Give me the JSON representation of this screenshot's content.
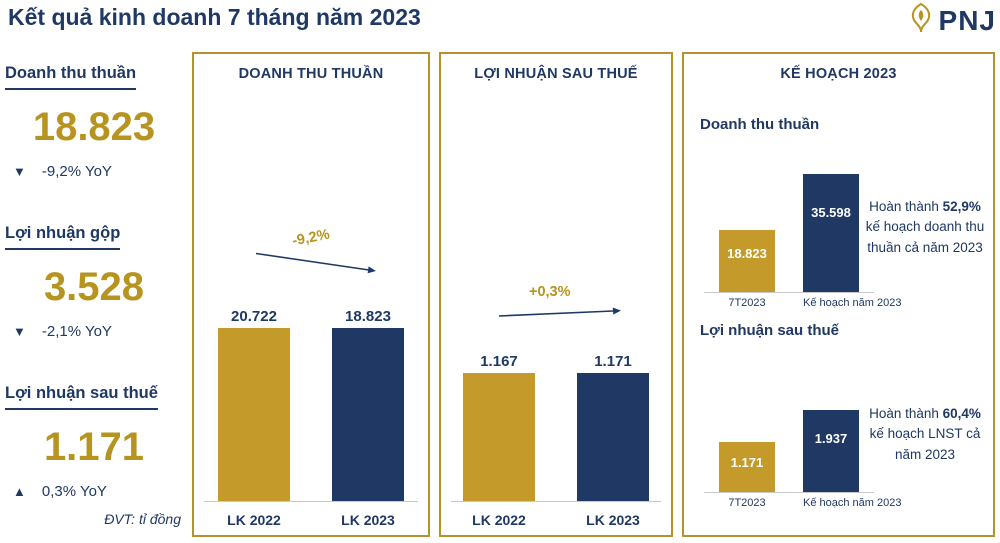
{
  "page": {
    "title": "Kết quả kinh doanh 7 tháng năm 2023",
    "logo": {
      "text": "PNJ"
    },
    "unit_note": "ĐVT: tỉ đồng"
  },
  "colors": {
    "navy": "#1F3864",
    "gold_text": "#B7941F",
    "bar_gold": "#C49B2B",
    "bar_navy": "#1F3864",
    "panel_border": "#B3922F",
    "axis_line": "#C8C8C8"
  },
  "kpis": [
    {
      "label": "Doanh thu thuần",
      "value": "18.823",
      "arrow": "▼",
      "delta": "-9,2% YoY"
    },
    {
      "label": "Lợi nhuận gộp",
      "value": "3.528",
      "arrow": "▼",
      "delta": "-2,1% YoY"
    },
    {
      "label": "Lợi nhuận sau thuế",
      "value": "1.171",
      "arrow": "▲",
      "delta": "0,3% YoY"
    }
  ],
  "chart_data": [
    {
      "type": "bar",
      "title": "DOANH THU THUẦN",
      "categories": [
        "LK 2022",
        "LK 2023"
      ],
      "values": [
        20722,
        18823
      ],
      "labels": [
        "20.722",
        "18.823"
      ],
      "max": 20722,
      "annotation": "-9,2%",
      "bar_colors": [
        "#C49B2B",
        "#1F3864"
      ],
      "ylabel": "tỉ đồng",
      "grid": false,
      "legend": "none"
    },
    {
      "type": "bar",
      "title": "LỢI NHUẬN SAU THUẾ",
      "categories": [
        "LK 2022",
        "LK 2023"
      ],
      "values": [
        1167,
        1171
      ],
      "labels": [
        "1.167",
        "1.171"
      ],
      "max": 1171,
      "annotation": "+0,3%",
      "bar_colors": [
        "#C49B2B",
        "#1F3864"
      ],
      "ylabel": "tỉ đồng",
      "grid": false,
      "legend": "none"
    },
    {
      "type": "bar",
      "title": "KẾ HOẠCH 2023",
      "heading": "Doanh thu thuần",
      "categories": [
        "7T2023",
        "Kế hoạch năm 2023"
      ],
      "values": [
        18823,
        35598
      ],
      "labels": [
        "18.823",
        "35.598"
      ],
      "max": 35598,
      "bar_colors": [
        "#C49B2B",
        "#1F3864"
      ],
      "note": {
        "pre": "Hoàn thành ",
        "bold": "52,9%",
        "post": " kế hoạch doanh thu thuần cả năm 2023"
      },
      "ylabel": "tỉ đồng",
      "grid": false,
      "legend": "none"
    },
    {
      "type": "bar",
      "heading": "Lợi nhuận sau thuế",
      "categories": [
        "7T2023",
        "Kế hoạch năm 2023"
      ],
      "values": [
        1171,
        1937
      ],
      "labels": [
        "1.171",
        "1.937"
      ],
      "max": 1937,
      "bar_colors": [
        "#C49B2B",
        "#1F3864"
      ],
      "note": {
        "pre": "Hoàn thành ",
        "bold": "60,4%",
        "post": " kế hoạch LNST cả năm 2023"
      },
      "ylabel": "tỉ đồng",
      "grid": false,
      "legend": "none"
    }
  ]
}
